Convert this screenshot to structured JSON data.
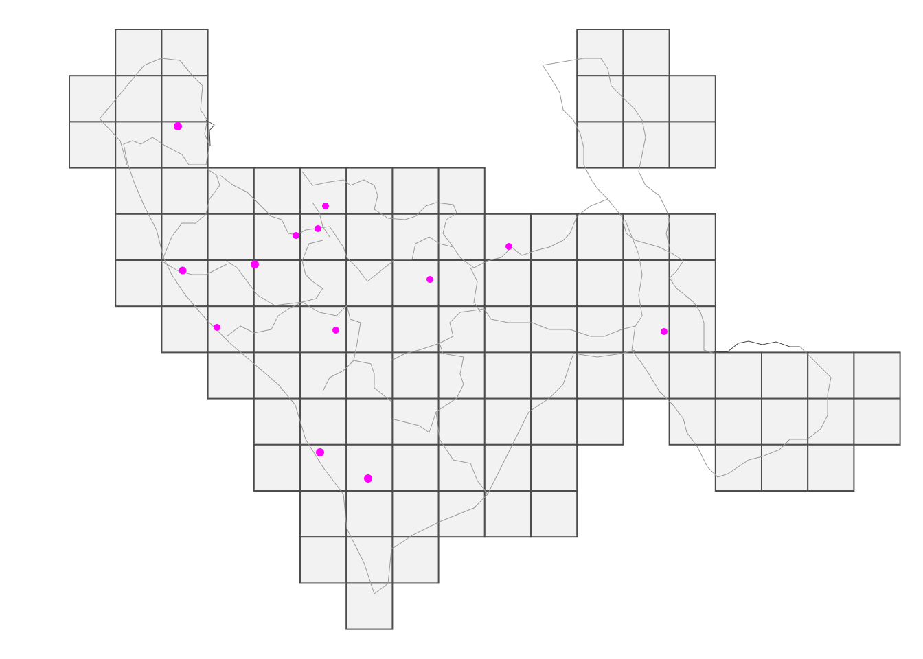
{
  "map": {
    "grid_rows": [
      [
        2,
        3
      ],
      [
        1,
        2,
        3
      ],
      [
        1,
        2,
        3
      ],
      [
        2,
        3,
        4,
        5,
        6,
        7,
        8,
        9
      ],
      [
        2,
        3,
        4,
        5,
        6,
        7,
        8,
        9,
        10,
        11,
        12,
        13,
        14
      ],
      [
        2,
        3,
        4,
        5,
        6,
        7,
        8,
        9,
        10,
        11,
        12,
        13,
        14
      ],
      [
        3,
        4,
        5,
        6,
        7,
        8,
        9,
        10,
        11,
        12,
        13,
        14
      ],
      [
        4,
        5,
        6,
        7,
        8,
        9,
        10,
        11,
        12,
        13,
        14,
        15,
        16,
        17,
        18
      ],
      [
        5,
        6,
        7,
        8,
        9,
        10,
        11,
        12,
        14,
        15,
        16,
        17,
        18
      ],
      [
        5,
        6,
        7,
        8,
        9,
        10,
        11,
        15,
        16,
        17
      ],
      [
        6,
        7,
        8,
        9,
        10,
        11
      ],
      [
        6,
        7,
        8
      ],
      [
        7
      ]
    ],
    "north_block": {
      "rows": [
        0,
        1,
        2
      ],
      "cols_by_row": [
        [
          11,
          12
        ],
        [
          11,
          12,
          13
        ],
        [
          11,
          12,
          13
        ]
      ]
    },
    "colors": {
      "cell_fill": "#f2f2f2",
      "cell_stroke": "#4d4d4d",
      "boundary": "#9a9a9a",
      "point": "#ff00ff"
    },
    "point_count": 13
  }
}
